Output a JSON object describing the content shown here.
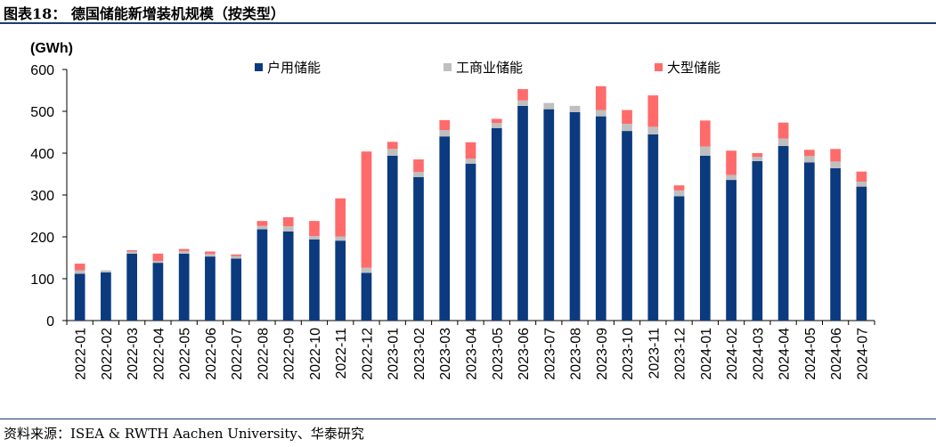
{
  "figure": {
    "title": "图表18：  德国储能新增装机规模（按类型）",
    "source": "资料来源：ISEA & RWTH Aachen University、华泰研究"
  },
  "colors": {
    "residential": "#0b3a7e",
    "commercial": "#bfbfbf",
    "utility": "#ff6b6b",
    "axis": "#000000",
    "rule": "#1f3a6e"
  },
  "chart_data": {
    "type": "bar",
    "stacked": true,
    "ylabel": "(GWh)",
    "ylim": [
      0,
      600
    ],
    "yticks": [
      0,
      100,
      200,
      300,
      400,
      500,
      600
    ],
    "grid": false,
    "legend_position": "top",
    "categories": [
      "2022-01",
      "2022-02",
      "2022-03",
      "2022-04",
      "2022-05",
      "2022-06",
      "2022-07",
      "2022-08",
      "2022-09",
      "2022-10",
      "2022-11",
      "2022-12",
      "2023-01",
      "2023-02",
      "2023-03",
      "2023-04",
      "2023-05",
      "2023-06",
      "2023-07",
      "2023-08",
      "2023-09",
      "2023-10",
      "2023-11",
      "2023-12",
      "2024-01",
      "2024-02",
      "2024-03",
      "2024-04",
      "2024-05",
      "2024-06",
      "2024-07"
    ],
    "series": [
      {
        "name": "户用储能",
        "color_key": "residential",
        "values": [
          112,
          115,
          160,
          138,
          160,
          153,
          148,
          218,
          213,
          194,
          191,
          114,
          394,
          343,
          440,
          375,
          460,
          513,
          505,
          498,
          488,
          453,
          445,
          297,
          394,
          336,
          381,
          417,
          378,
          364,
          320
        ]
      },
      {
        "name": "工商业储能",
        "color_key": "commercial",
        "values": [
          8,
          5,
          5,
          4,
          6,
          6,
          6,
          8,
          12,
          8,
          10,
          12,
          16,
          12,
          15,
          12,
          12,
          13,
          15,
          15,
          15,
          17,
          18,
          14,
          22,
          12,
          10,
          18,
          15,
          16,
          12
        ]
      },
      {
        "name": "大型储能",
        "color_key": "utility",
        "values": [
          16,
          0,
          3,
          18,
          5,
          6,
          4,
          12,
          22,
          36,
          91,
          278,
          17,
          30,
          24,
          39,
          10,
          27,
          0,
          0,
          57,
          33,
          75,
          12,
          62,
          58,
          9,
          38,
          15,
          30,
          24
        ]
      }
    ]
  }
}
